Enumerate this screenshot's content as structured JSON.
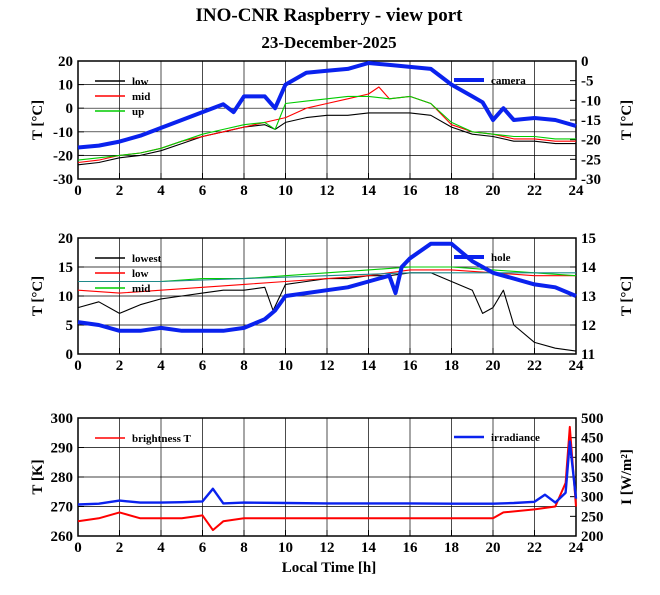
{
  "title": "INO-CNR Raspberry - view port",
  "subtitle": "23-December-2025",
  "xlabel": "Local Time [h]",
  "colors": {
    "black": "#000000",
    "red": "#ff0000",
    "green": "#00cc00",
    "blue": "#0a22ee",
    "teal": "#1f8a8a"
  },
  "chart_data": [
    {
      "type": "line",
      "ylabel": "T [°C]",
      "ylabel_right": "T [°C]",
      "xlim": [
        0,
        24
      ],
      "ylim": [
        -30,
        20
      ],
      "ylim_right": [
        -30,
        0
      ],
      "xticks": [
        "0",
        "2",
        "4",
        "6",
        "8",
        "10",
        "12",
        "14",
        "16",
        "18",
        "20",
        "22",
        "24"
      ],
      "yticks": [
        "-30",
        "-20",
        "-10",
        "0",
        "10",
        "20"
      ],
      "yticks_right": [
        "-30",
        "-25",
        "-20",
        "-15",
        "-10",
        "-5",
        "0"
      ],
      "grid": true,
      "series": [
        {
          "name": "low",
          "axis": "left",
          "color": "black",
          "x": [
            0,
            1,
            2,
            3,
            4,
            5,
            6,
            7,
            8,
            9,
            9.5,
            10,
            11,
            12,
            13,
            14,
            15,
            16,
            17,
            18,
            19,
            20,
            21,
            22,
            23,
            24
          ],
          "y": [
            -24,
            -23,
            -21,
            -20,
            -18,
            -15,
            -12,
            -10,
            -8,
            -7,
            -9,
            -6,
            -4,
            -3,
            -3,
            -2,
            -2,
            -2,
            -3,
            -8,
            -11,
            -12,
            -14,
            -14,
            -15,
            -15
          ]
        },
        {
          "name": "mid",
          "axis": "left",
          "color": "red",
          "x": [
            0,
            1,
            2,
            3,
            4,
            5,
            6,
            7,
            8,
            9,
            10,
            11,
            12,
            13,
            14,
            14.5,
            15,
            16,
            17,
            18,
            19,
            20,
            21,
            22,
            23,
            24
          ],
          "y": [
            -23,
            -22,
            -20,
            -19,
            -17,
            -14,
            -12,
            -10,
            -8,
            -6,
            -4,
            0,
            2,
            4,
            6,
            9,
            4,
            5,
            2,
            -7,
            -10,
            -11,
            -13,
            -13,
            -14,
            -14
          ]
        },
        {
          "name": "up",
          "axis": "left",
          "color": "green",
          "x": [
            0,
            1,
            2,
            3,
            4,
            5,
            6,
            7,
            8,
            9,
            9.5,
            10,
            11,
            12,
            13,
            14,
            15,
            16,
            17,
            18,
            19,
            20,
            21,
            22,
            23,
            24
          ],
          "y": [
            -22,
            -21,
            -20,
            -19,
            -17,
            -14,
            -11,
            -9,
            -7,
            -6,
            -9,
            2,
            3,
            4,
            5,
            5,
            4,
            5,
            2,
            -6,
            -10,
            -11,
            -12,
            -12,
            -13,
            -13
          ]
        },
        {
          "name": "camera",
          "axis": "right",
          "color": "blue",
          "x": [
            0,
            1,
            2,
            3,
            4,
            5,
            6,
            7,
            7.5,
            8,
            9,
            9.5,
            10,
            11,
            12,
            13,
            14,
            15,
            16,
            17,
            18,
            19,
            19.5,
            20,
            20.5,
            21,
            22,
            23,
            24
          ],
          "y": [
            -22,
            -21.5,
            -20.5,
            -19,
            -17,
            -15,
            -13,
            -11,
            -13,
            -9,
            -9,
            -12,
            -6,
            -3,
            -2.5,
            -2,
            -0.5,
            -1,
            -1.5,
            -2,
            -6,
            -9,
            -10.5,
            -15,
            -12,
            -15,
            -14.5,
            -15,
            -16.5
          ]
        }
      ]
    },
    {
      "type": "line",
      "ylabel": "T [°C]",
      "ylabel_right": "T [°C]",
      "xlim": [
        0,
        24
      ],
      "ylim": [
        0,
        20
      ],
      "ylim_right": [
        11,
        15
      ],
      "xticks": [
        "0",
        "2",
        "4",
        "6",
        "8",
        "10",
        "12",
        "14",
        "16",
        "18",
        "20",
        "22",
        "24"
      ],
      "yticks": [
        "0",
        "5",
        "10",
        "15",
        "20"
      ],
      "yticks_right": [
        "11",
        "12",
        "13",
        "14",
        "15"
      ],
      "grid": true,
      "series": [
        {
          "name": "lowest",
          "axis": "left",
          "color": "black",
          "x": [
            0,
            1,
            2,
            3,
            4,
            5,
            6,
            7,
            8,
            9,
            9.4,
            10,
            11,
            12,
            13,
            14,
            15,
            16,
            17,
            18,
            19,
            19.5,
            20,
            20.5,
            21,
            22,
            23,
            24
          ],
          "y": [
            8,
            9,
            7,
            8.5,
            9.5,
            10,
            10.5,
            11,
            11,
            11.5,
            7.5,
            12,
            12.5,
            13,
            13,
            13.5,
            13.5,
            14,
            14,
            12.5,
            11,
            7,
            8,
            11,
            5,
            2,
            1,
            0.5
          ]
        },
        {
          "name": "low",
          "axis": "left",
          "color": "red",
          "x": [
            0,
            2,
            4,
            6,
            8,
            10,
            12,
            14,
            16,
            18,
            20,
            22,
            24
          ],
          "y": [
            11,
            10.5,
            11,
            11.5,
            12,
            12.5,
            13,
            13.5,
            14.5,
            14.5,
            14,
            13.5,
            13.5
          ]
        },
        {
          "name": "mid",
          "axis": "left",
          "color": "green",
          "x": [
            0,
            2,
            4,
            6,
            8,
            10,
            12,
            14,
            16,
            18,
            20,
            22,
            24
          ],
          "y": [
            12.5,
            12.5,
            12.5,
            13,
            13,
            13.5,
            14,
            14.5,
            15,
            15,
            14.5,
            14,
            13.5
          ]
        },
        {
          "name": "",
          "axis": "left",
          "color": "teal",
          "x": [
            0,
            4,
            8,
            12,
            16,
            20,
            24
          ],
          "y": [
            12.5,
            12.5,
            13,
            13.5,
            14,
            14,
            14
          ]
        },
        {
          "name": "hole",
          "axis": "right",
          "color": "blue",
          "x": [
            0,
            1,
            2,
            3,
            4,
            5,
            6,
            7,
            8,
            9,
            9.5,
            10,
            11,
            12,
            13,
            14,
            15,
            15.3,
            15.6,
            16,
            17,
            18,
            18.5,
            19,
            20,
            21,
            22,
            23,
            24
          ],
          "y": [
            12.1,
            12,
            11.8,
            11.8,
            11.9,
            11.8,
            11.8,
            11.8,
            11.9,
            12.2,
            12.5,
            13,
            13.1,
            13.2,
            13.3,
            13.5,
            13.7,
            13.1,
            14,
            14.3,
            14.8,
            14.8,
            14.5,
            14.2,
            13.8,
            13.6,
            13.4,
            13.3,
            13
          ]
        }
      ]
    },
    {
      "type": "line",
      "ylabel": "T [K]",
      "ylabel_right": "I [W/m²]",
      "xlim": [
        0,
        24
      ],
      "ylim": [
        260,
        300
      ],
      "ylim_right": [
        200,
        500
      ],
      "xticks": [
        "0",
        "2",
        "4",
        "6",
        "8",
        "10",
        "12",
        "14",
        "16",
        "18",
        "20",
        "22",
        "24"
      ],
      "yticks": [
        "260",
        "270",
        "280",
        "290",
        "300"
      ],
      "yticks_right": [
        "200",
        "250",
        "300",
        "350",
        "400",
        "450",
        "500"
      ],
      "grid": true,
      "series": [
        {
          "name": "brightness T",
          "axis": "left",
          "color": "red",
          "x": [
            0,
            1,
            2,
            3,
            4,
            5,
            6,
            6.5,
            7,
            8,
            10,
            12,
            14,
            16,
            18,
            20,
            20.5,
            22,
            23,
            23.5,
            23.7,
            24
          ],
          "y": [
            265,
            266,
            268,
            266,
            266,
            266,
            267,
            262,
            265,
            266,
            266,
            266,
            266,
            266,
            266,
            266,
            268,
            269,
            270,
            278,
            297,
            270
          ]
        },
        {
          "name": "irradiance",
          "axis": "right",
          "color": "blue",
          "x": [
            0,
            1,
            2,
            3,
            4,
            5,
            6,
            6.5,
            7,
            8,
            10,
            12,
            14,
            16,
            18,
            20,
            21,
            22,
            22.5,
            23,
            23.5,
            23.7,
            24
          ],
          "y": [
            280,
            282,
            290,
            285,
            285,
            286,
            288,
            320,
            283,
            285,
            284,
            283,
            283,
            283,
            282,
            282,
            284,
            287,
            305,
            285,
            310,
            440,
            295
          ]
        }
      ]
    }
  ],
  "legends": [
    {
      "entries": [
        "low",
        "mid",
        "up"
      ],
      "right": [
        "camera"
      ]
    },
    {
      "entries": [
        "lowest",
        "low",
        "mid"
      ],
      "right": [
        "hole"
      ]
    },
    {
      "entries": [
        "brightness T"
      ],
      "right": [
        "irradiance"
      ]
    }
  ]
}
